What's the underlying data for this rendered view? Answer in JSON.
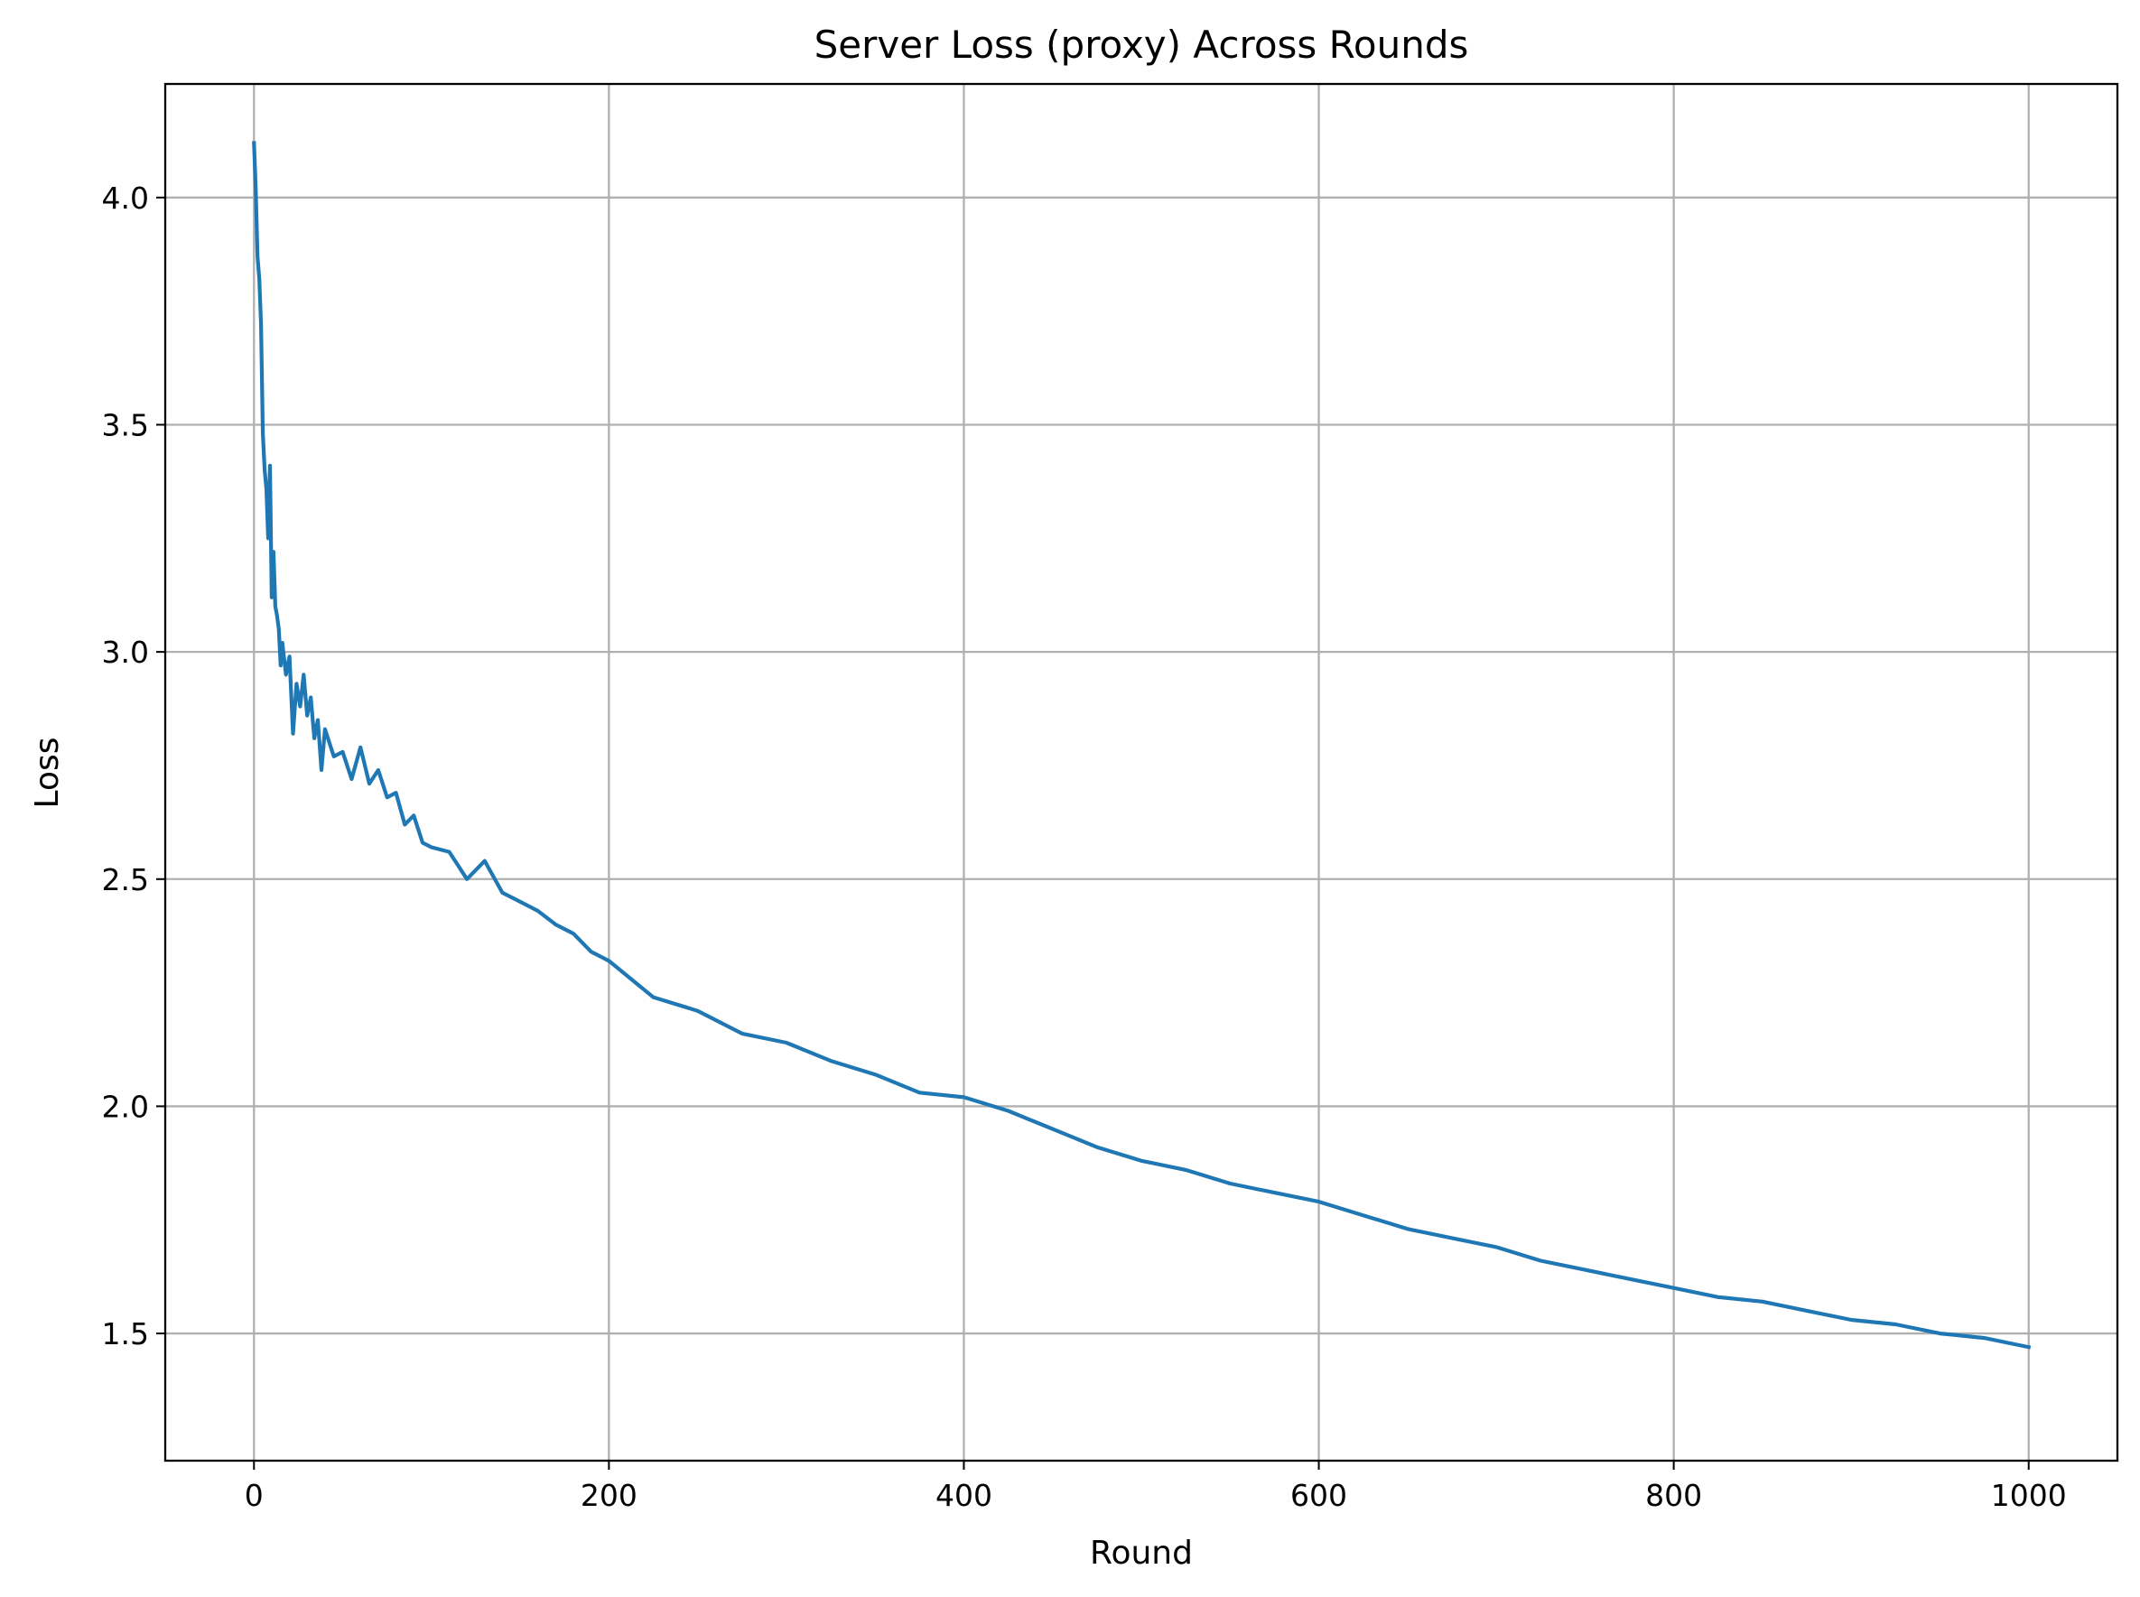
{
  "chart_data": {
    "type": "line",
    "title": "Server Loss (proxy) Across Rounds",
    "xlabel": "Round",
    "ylabel": "Loss",
    "xlim": [
      -50,
      1050
    ],
    "ylim": [
      1.22,
      4.25
    ],
    "x_ticks": [
      0,
      200,
      400,
      600,
      800,
      1000
    ],
    "x_tick_labels": [
      "0",
      "200",
      "400",
      "600",
      "800",
      "1000"
    ],
    "y_ticks": [
      1.5,
      2.0,
      2.5,
      3.0,
      3.5,
      4.0
    ],
    "y_tick_labels": [
      "1.5",
      "2.0",
      "2.5",
      "3.0",
      "3.5",
      "4.0"
    ],
    "grid": true,
    "legend": "none",
    "series": [
      {
        "color": "#1f77b4",
        "x": [
          0,
          1,
          2,
          3,
          4,
          5,
          6,
          7,
          8,
          9,
          10,
          11,
          12,
          13,
          14,
          15,
          16,
          18,
          20,
          22,
          24,
          26,
          28,
          30,
          32,
          34,
          36,
          38,
          40,
          45,
          50,
          55,
          60,
          65,
          70,
          75,
          80,
          85,
          90,
          95,
          100,
          110,
          120,
          130,
          140,
          150,
          160,
          170,
          180,
          190,
          200,
          225,
          250,
          275,
          300,
          325,
          350,
          375,
          400,
          425,
          450,
          475,
          500,
          525,
          550,
          575,
          600,
          625,
          650,
          675,
          700,
          725,
          750,
          775,
          800,
          825,
          850,
          875,
          900,
          925,
          950,
          975,
          1000
        ],
        "y": [
          4.12,
          4.02,
          3.87,
          3.82,
          3.72,
          3.48,
          3.4,
          3.36,
          3.25,
          3.41,
          3.12,
          3.22,
          3.1,
          3.08,
          3.05,
          2.97,
          3.02,
          2.95,
          2.99,
          2.82,
          2.93,
          2.88,
          2.95,
          2.86,
          2.9,
          2.81,
          2.85,
          2.74,
          2.83,
          2.77,
          2.78,
          2.72,
          2.79,
          2.71,
          2.74,
          2.68,
          2.69,
          2.62,
          2.64,
          2.58,
          2.57,
          2.56,
          2.5,
          2.54,
          2.47,
          2.45,
          2.43,
          2.4,
          2.38,
          2.34,
          2.32,
          2.24,
          2.21,
          2.16,
          2.14,
          2.1,
          2.07,
          2.03,
          2.02,
          1.99,
          1.95,
          1.91,
          1.88,
          1.86,
          1.83,
          1.81,
          1.79,
          1.76,
          1.73,
          1.71,
          1.69,
          1.66,
          1.64,
          1.62,
          1.6,
          1.58,
          1.57,
          1.55,
          1.53,
          1.52,
          1.5,
          1.49,
          1.47
        ]
      }
    ]
  }
}
